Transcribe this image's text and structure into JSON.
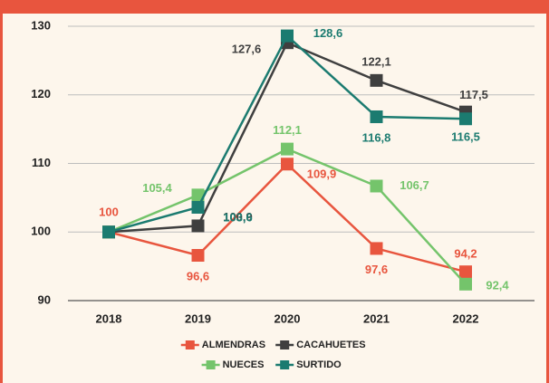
{
  "chart_data": {
    "type": "line",
    "categories": [
      "2018",
      "2019",
      "2020",
      "2021",
      "2022"
    ],
    "ylim": [
      90,
      130
    ],
    "yticks": [
      90,
      100,
      110,
      120,
      130
    ],
    "grid": true,
    "series": [
      {
        "name": "ALMENDRAS",
        "color": "#e8553e",
        "values": [
          100,
          96.6,
          109.9,
          97.6,
          94.2
        ],
        "value_labels": [
          "100",
          "96,6",
          "109,9",
          "97,6",
          "94,2"
        ]
      },
      {
        "name": "CACAHUETES",
        "color": "#3f3f3f",
        "values": [
          100,
          100.9,
          127.6,
          122.1,
          117.5
        ],
        "value_labels": [
          null,
          "100,9",
          "127,6",
          "122,1",
          "117,5"
        ]
      },
      {
        "name": "NUECES",
        "color": "#74c46b",
        "values": [
          100,
          105.4,
          112.1,
          106.7,
          92.4
        ],
        "value_labels": [
          null,
          "105,4",
          "112,1",
          "106,7",
          "92,4"
        ]
      },
      {
        "name": "SURTIDO",
        "color": "#1b7b70",
        "values": [
          100,
          103.6,
          128.6,
          116.8,
          116.5
        ],
        "value_labels": [
          null,
          "103,6",
          "128,6",
          "116,8",
          "116,5"
        ]
      }
    ]
  }
}
